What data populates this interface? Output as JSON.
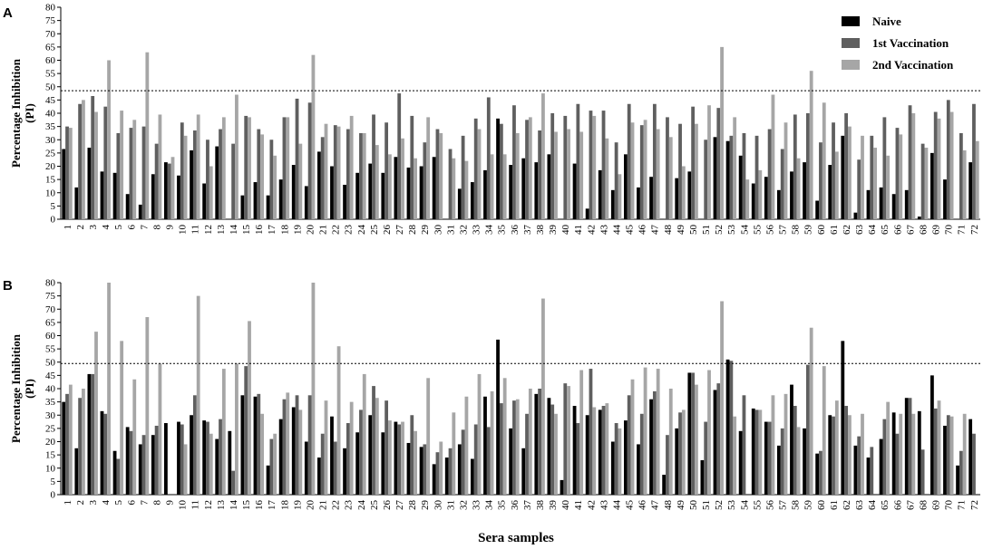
{
  "colors": {
    "naive": "#000000",
    "first": "#5f5f5f",
    "second": "#a6a6a6",
    "axis": "#000000",
    "threshold": "#000000"
  },
  "chart_data": [
    {
      "panel": "A",
      "type": "bar",
      "ylabel": "Percentage Inhibition\n(PI)",
      "xlabel": "",
      "ylim": [
        0,
        80
      ],
      "yticks": [
        0,
        5,
        10,
        15,
        20,
        25,
        30,
        35,
        40,
        45,
        50,
        55,
        60,
        65,
        70,
        75,
        80
      ],
      "threshold": 48.5,
      "legend": "top-right",
      "categories": [
        "1",
        "2",
        "3",
        "4",
        "5",
        "6",
        "7",
        "8",
        "9",
        "10",
        "11",
        "12",
        "13",
        "14",
        "15",
        "16",
        "17",
        "18",
        "19",
        "20",
        "21",
        "22",
        "23",
        "24",
        "25",
        "26",
        "27",
        "28",
        "29",
        "30",
        "31",
        "32",
        "33",
        "34",
        "35",
        "36",
        "37",
        "38",
        "39",
        "40",
        "41",
        "42",
        "43",
        "44",
        "45",
        "46",
        "47",
        "48",
        "49",
        "50",
        "51",
        "52",
        "53",
        "54",
        "55",
        "56",
        "57",
        "58",
        "59",
        "60",
        "61",
        "62",
        "63",
        "64",
        "65",
        "66",
        "67",
        "68",
        "69",
        "70",
        "71",
        "72"
      ],
      "series": [
        {
          "name": "Naive",
          "values": [
            26.5,
            12,
            27,
            18,
            17.5,
            9.5,
            5.5,
            17,
            21.5,
            16.5,
            26,
            13.5,
            27.5,
            0,
            9,
            14,
            9,
            15,
            20.5,
            12.5,
            25.5,
            20,
            13,
            17.5,
            21,
            17.5,
            23.5,
            19.5,
            20,
            23.5,
            0,
            11.5,
            14,
            18.5,
            38,
            20.5,
            23,
            21.5,
            24.5,
            0,
            21,
            4,
            18.5,
            11,
            24.5,
            12,
            16,
            0,
            15.5,
            18,
            0,
            31,
            29.5,
            24,
            13.5,
            16,
            11,
            18,
            21.5,
            7,
            20.5,
            31.5,
            2.5,
            11,
            12,
            9.5,
            11,
            1,
            25,
            15,
            0,
            21.5
          ]
        },
        {
          "name": "1st Vaccination",
          "values": [
            35,
            43.5,
            46.5,
            42.5,
            32.5,
            34.5,
            35,
            28.5,
            21,
            36.5,
            33.5,
            30,
            34,
            28.5,
            39,
            34,
            30,
            38.5,
            45.5,
            44,
            31,
            35.5,
            34,
            32.5,
            39.5,
            36.5,
            47.5,
            39,
            29,
            34,
            26.5,
            31.5,
            38,
            46,
            36,
            43,
            37.5,
            33.5,
            40,
            39,
            43.5,
            41,
            41,
            29,
            43.5,
            35.5,
            43.5,
            38.5,
            36,
            42.5,
            30,
            42,
            31.5,
            32.5,
            31.5,
            34,
            26.5,
            39.5,
            40,
            29,
            36.5,
            40,
            22.5,
            31.5,
            38.5,
            34.5,
            43,
            28.5,
            40.5,
            45,
            32.5,
            43.5
          ]
        },
        {
          "name": "2nd Vaccination",
          "values": [
            34.5,
            45,
            40.5,
            60,
            41,
            37.5,
            63,
            39.5,
            23.5,
            31.5,
            39.5,
            20,
            38.5,
            47,
            38.5,
            32,
            24,
            38.5,
            28.5,
            62,
            36,
            35,
            39,
            32.5,
            28,
            24.5,
            30.5,
            23,
            38.5,
            32.5,
            23,
            22,
            34,
            24.5,
            24.5,
            32.5,
            38.5,
            47.5,
            33,
            34,
            33,
            39,
            30.5,
            17,
            36.5,
            37.5,
            34,
            31,
            20,
            36,
            43,
            65,
            38.5,
            15,
            18.5,
            47,
            36.5,
            23,
            56,
            44,
            25.5,
            35,
            31.5,
            27,
            24,
            32,
            40,
            27,
            38,
            40.5,
            26,
            29.5
          ]
        }
      ]
    },
    {
      "panel": "B",
      "type": "bar",
      "ylabel": "Percentage Inhibition\n(PI)",
      "xlabel": "Sera samples",
      "ylim": [
        0,
        80
      ],
      "yticks": [
        0,
        5,
        10,
        15,
        20,
        25,
        30,
        35,
        40,
        45,
        50,
        55,
        60,
        65,
        70,
        75,
        80
      ],
      "threshold": 49.5,
      "categories": [
        "1",
        "2",
        "3",
        "4",
        "5",
        "6",
        "7",
        "8",
        "9",
        "10",
        "11",
        "12",
        "13",
        "14",
        "15",
        "16",
        "17",
        "18",
        "19",
        "20",
        "21",
        "22",
        "23",
        "24",
        "25",
        "26",
        "27",
        "28",
        "29",
        "30",
        "31",
        "32",
        "33",
        "34",
        "35",
        "36",
        "37",
        "38",
        "39",
        "40",
        "41",
        "42",
        "43",
        "44",
        "45",
        "46",
        "47",
        "48",
        "49",
        "50",
        "51",
        "52",
        "53",
        "54",
        "55",
        "56",
        "57",
        "58",
        "59",
        "60",
        "61",
        "62",
        "63",
        "64",
        "65",
        "66",
        "67",
        "68",
        "69",
        "70",
        "71",
        "72"
      ],
      "series": [
        {
          "name": "Naive",
          "values": [
            35,
            17.5,
            45.5,
            31.5,
            16.5,
            25.5,
            19,
            22.5,
            27,
            27.5,
            30,
            28,
            21,
            24,
            37.5,
            37,
            11,
            28.5,
            33,
            20,
            14,
            29.5,
            17.5,
            23.5,
            30,
            23.5,
            27.5,
            19.5,
            18,
            11.5,
            14,
            19,
            13.5,
            37,
            58.5,
            25,
            17.5,
            38,
            36.5,
            5.5,
            33.5,
            30,
            32,
            20,
            28,
            19,
            36,
            7.5,
            25,
            46,
            13,
            39.5,
            51,
            24,
            32.5,
            27.5,
            18.5,
            41.5,
            25,
            15.5,
            30,
            58,
            18.5,
            14,
            21,
            31,
            36.5,
            31.5,
            45,
            26,
            11,
            28.5
          ]
        },
        {
          "name": "1st Vaccination",
          "values": [
            38,
            36.5,
            45.5,
            30.5,
            13.5,
            24,
            22.5,
            26,
            0,
            26.5,
            37.5,
            27.5,
            28.5,
            9,
            48.5,
            38,
            21,
            36,
            37.5,
            37.5,
            23,
            20,
            27,
            32,
            41,
            35.5,
            26.5,
            30,
            19,
            16,
            17.5,
            24.5,
            26.5,
            25.5,
            34.5,
            35.5,
            30.5,
            40,
            34,
            42,
            27,
            47.5,
            33.5,
            27,
            37.5,
            30.5,
            39,
            22.5,
            31,
            46,
            27.5,
            42,
            50.5,
            37.5,
            32,
            27.5,
            25,
            33.5,
            49,
            16.5,
            29.5,
            33.5,
            22,
            18,
            28.5,
            23,
            36.5,
            17,
            32.5,
            30,
            16.5,
            23
          ]
        },
        {
          "name": "2nd Vaccination",
          "values": [
            41.5,
            40,
            61.5,
            80,
            58,
            43.5,
            67,
            49.5,
            0,
            19,
            75,
            23,
            47.5,
            49.5,
            65.5,
            30.5,
            23,
            38.5,
            32,
            80,
            35.5,
            56,
            35,
            45.5,
            36.5,
            28,
            27.5,
            24,
            44,
            20,
            31,
            37,
            45.5,
            39,
            44,
            36,
            40,
            74,
            30.5,
            41,
            47,
            33,
            34.5,
            25,
            43.5,
            48,
            47.5,
            40,
            32,
            41.5,
            47,
            73,
            29.5,
            0,
            32,
            37.5,
            38,
            25.5,
            63,
            48.5,
            35.5,
            30,
            30.5,
            0,
            35,
            30.5,
            30.5,
            0,
            35.5,
            29.5,
            30.5,
            0
          ]
        }
      ]
    }
  ]
}
